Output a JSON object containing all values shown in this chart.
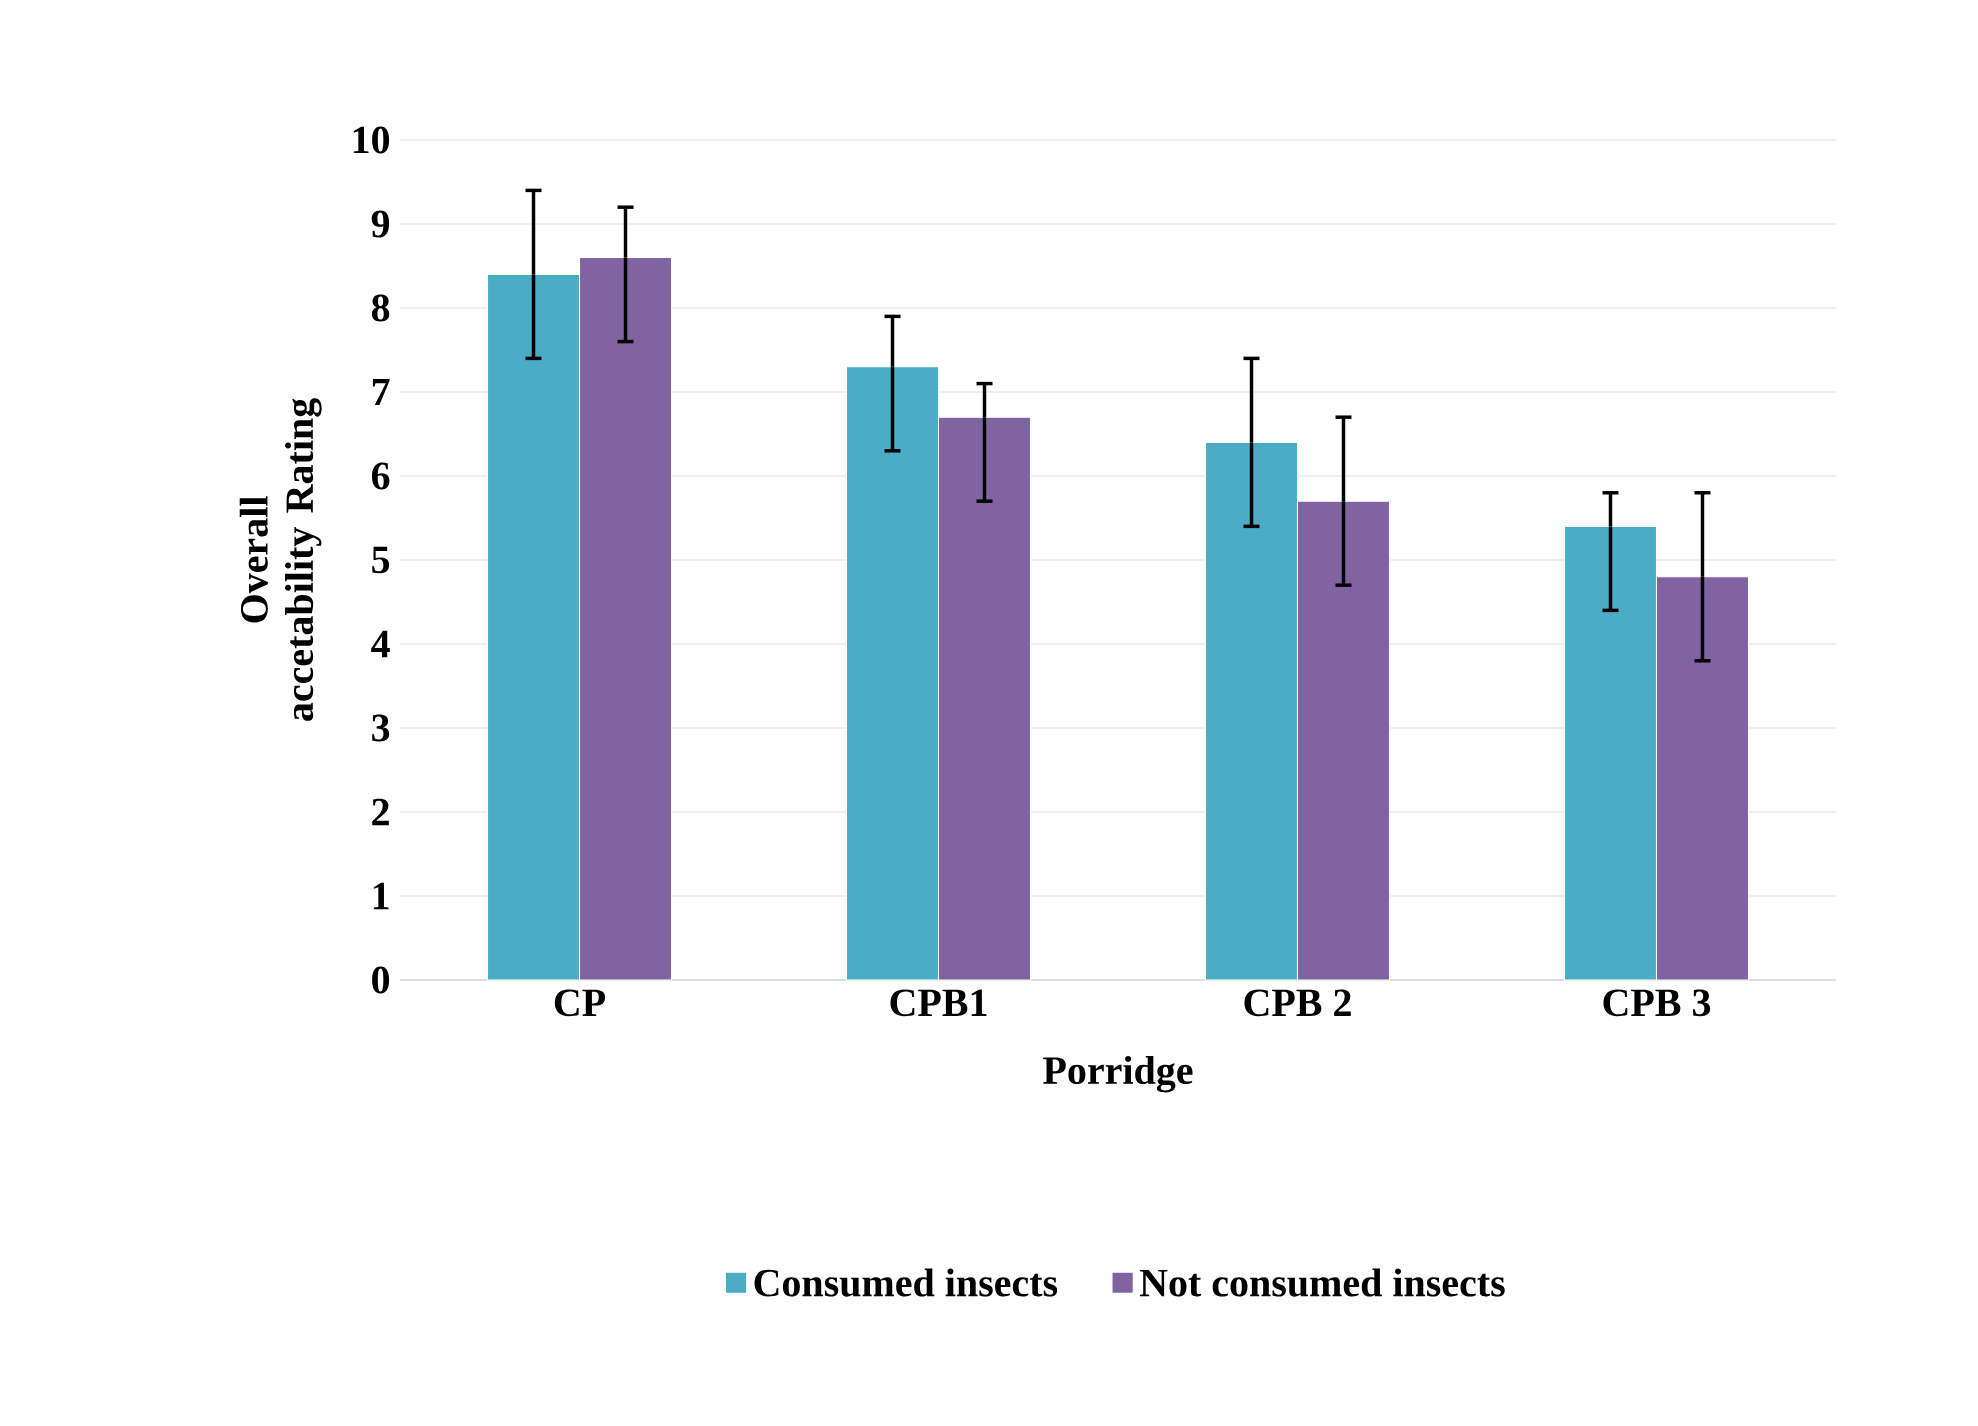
{
  "chart_data": {
    "type": "bar",
    "xlabel": "Porridge",
    "ylabel": "Overall accetability Rating",
    "categories": [
      "CP",
      "CPB1",
      "CPB 2",
      "CPB 3"
    ],
    "series": [
      {
        "name": "Consumed insects",
        "color": "#4bacc6",
        "values": [
          8.4,
          7.3,
          6.4,
          5.4
        ],
        "errors": [
          [
            7.4,
            9.4
          ],
          [
            6.3,
            7.9
          ],
          [
            5.4,
            7.4
          ],
          [
            4.4,
            5.8
          ]
        ]
      },
      {
        "name": "Not consumed insects",
        "color": "#8064a2",
        "values": [
          8.6,
          6.7,
          5.7,
          4.8
        ],
        "errors": [
          [
            7.6,
            9.2
          ],
          [
            5.7,
            7.1
          ],
          [
            4.7,
            6.7
          ],
          [
            3.8,
            5.8
          ]
        ]
      }
    ],
    "ylim": [
      0,
      10
    ],
    "yticks": [
      0,
      1,
      2,
      3,
      4,
      5,
      6,
      7,
      8,
      9,
      10
    ],
    "grid": "y",
    "legend": "bottom"
  }
}
